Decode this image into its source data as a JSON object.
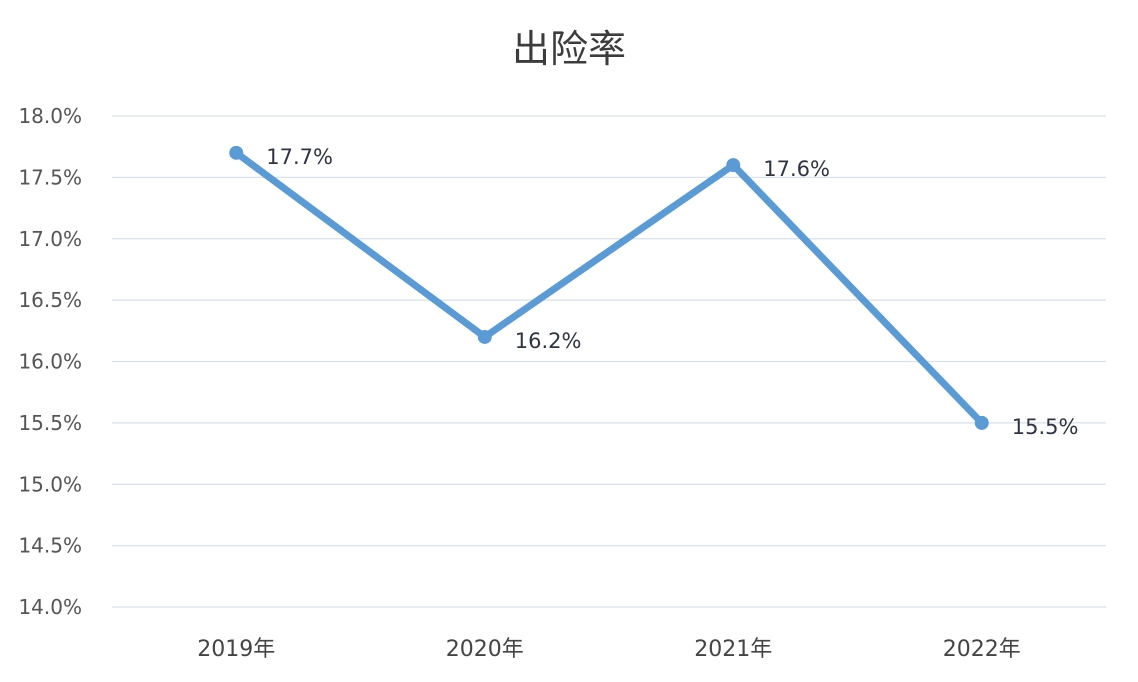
{
  "chart_data": {
    "type": "line",
    "title": "出险率",
    "xlabel": "",
    "ylabel": "",
    "categories": [
      "2019年",
      "2020年",
      "2021年",
      "2022年"
    ],
    "series": [
      {
        "values": [
          17.7,
          16.2,
          17.6,
          15.5
        ],
        "data_labels": [
          "17.7%",
          "16.2%",
          "17.6%",
          "15.5%"
        ],
        "color": "#5b9bd5"
      }
    ],
    "ylim": [
      14.0,
      18.0
    ],
    "yticks": [
      14.0,
      14.5,
      15.0,
      15.5,
      16.0,
      16.5,
      17.0,
      17.5,
      18.0
    ],
    "ytick_labels": [
      "14.0%",
      "14.5%",
      "15.0%",
      "15.5%",
      "16.0%",
      "16.5%",
      "17.0%",
      "17.5%",
      "18.0%"
    ],
    "grid": true,
    "legend": "none"
  }
}
